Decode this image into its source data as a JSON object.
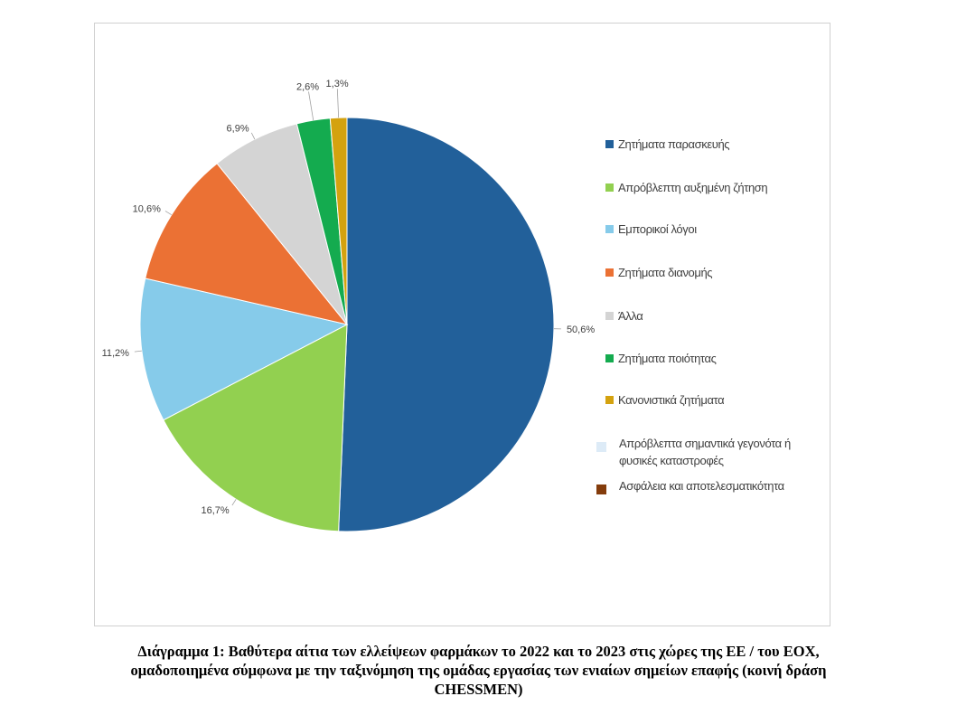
{
  "chart_data": {
    "type": "pie",
    "title": "",
    "start_angle": "top, clockwise",
    "slices": [
      {
        "label": "Ζητήματα παρασκευής",
        "value": 50.6,
        "value_label": "50,6%",
        "color": "#22609a"
      },
      {
        "label": "Απρόβλεπτη αυξημένη ζήτηση",
        "value": 16.7,
        "value_label": "16,7%",
        "color": "#92d050"
      },
      {
        "label": "Εμπορικοί λόγοι",
        "value": 11.2,
        "value_label": "11,2%",
        "color": "#86cbea"
      },
      {
        "label": "Ζητήματα διανομής",
        "value": 10.6,
        "value_label": "10,6%",
        "color": "#eb7134"
      },
      {
        "label": "Άλλα",
        "value": 6.9,
        "value_label": "6,9%",
        "color": "#d4d4d4"
      },
      {
        "label": "Ζητήματα ποιότητας",
        "value": 2.6,
        "value_label": "2,6%",
        "color": "#14ab4f"
      },
      {
        "label": "Κανονιστικά ζητήματα",
        "value": 1.3,
        "value_label": "1,3%",
        "color": "#d4a20f"
      },
      {
        "label": "Απρόβλεπτα σημαντικά γεγονότα ή φυσικές καταστροφές",
        "value": 0,
        "value_label": "",
        "color": "#ddebf7"
      },
      {
        "label": "Ασφάλεια και αποτελεσματικότητα",
        "value": 0,
        "value_label": "",
        "color": "#843c0c"
      }
    ],
    "legend_position": "right"
  },
  "caption": {
    "line1": "Διάγραμμα 1: Βαθύτερα αίτια των ελλείψεων φαρμάκων το 2022 και το 2023 στις χώρες της ΕΕ / του ΕΟΧ,",
    "line2": "ομαδοποιημένα σύμφωνα με την ταξινόμηση της ομάδας εργασίας των ενιαίων σημείων επαφής (κοινή δράση",
    "line3": "CHESSMEN)"
  }
}
